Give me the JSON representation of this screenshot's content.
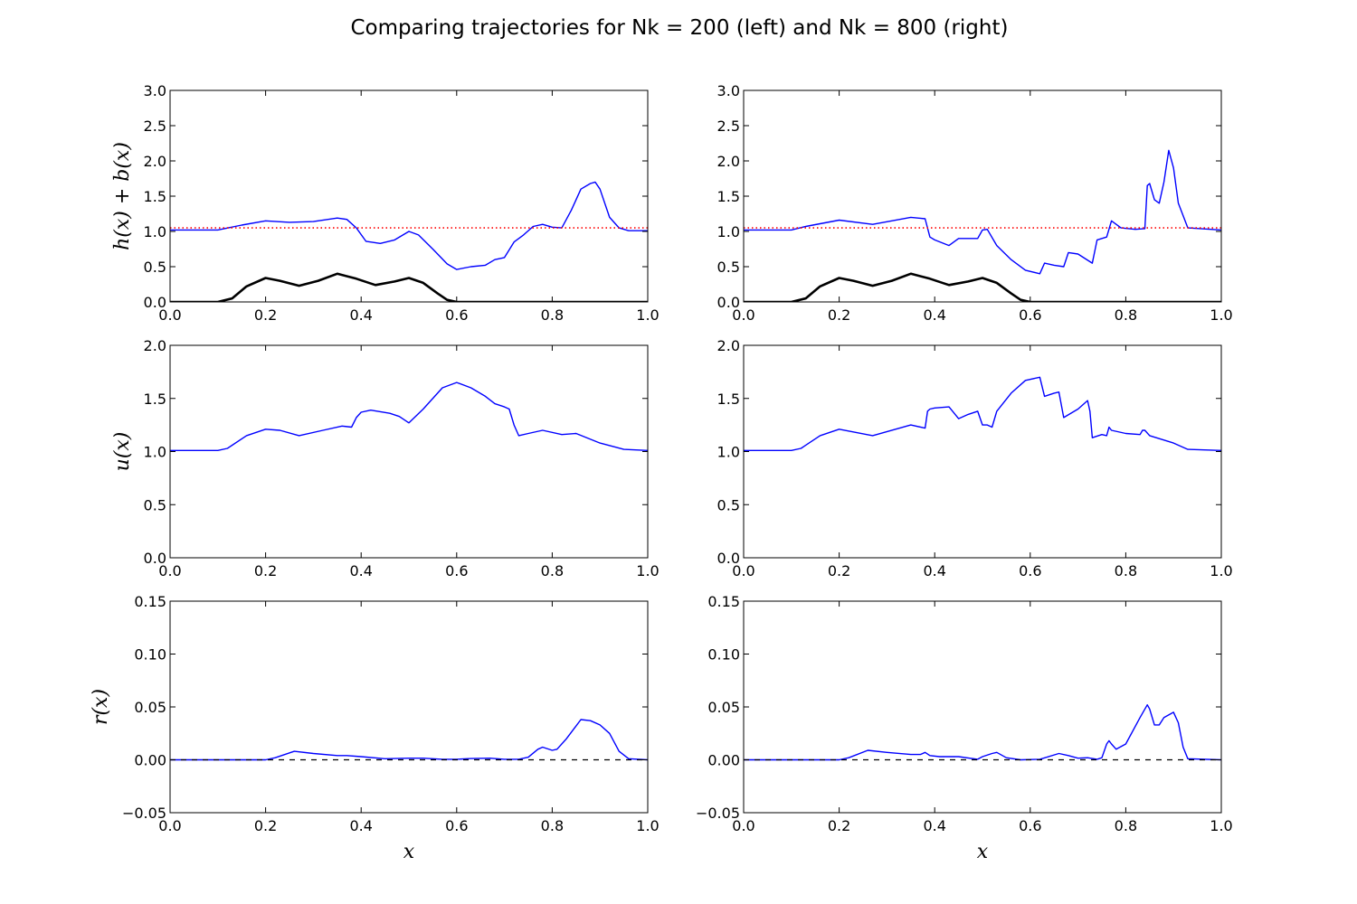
{
  "figure": {
    "title": "Comparing trajectories for Nk = 200 (left) and Nk = 800 (right)"
  },
  "chart_data": [
    {
      "type": "line",
      "column": "left",
      "row": "top",
      "ylabel": "h(x) + b(x)",
      "xlabel": "",
      "xlim": [
        0,
        1
      ],
      "ylim": [
        0,
        3
      ],
      "xticks": [
        "0.0",
        "0.2",
        "0.4",
        "0.6",
        "0.8",
        "1.0"
      ],
      "yticks": [
        "0.0",
        "0.5",
        "1.0",
        "1.5",
        "2.0",
        "2.5",
        "3.0"
      ],
      "grid": false,
      "series": [
        {
          "role": "surface",
          "color": "#0000ff",
          "style": "solid",
          "x": [
            0,
            0.1,
            0.15,
            0.2,
            0.25,
            0.3,
            0.35,
            0.37,
            0.39,
            0.41,
            0.44,
            0.47,
            0.5,
            0.52,
            0.55,
            0.58,
            0.6,
            0.63,
            0.66,
            0.68,
            0.7,
            0.72,
            0.74,
            0.76,
            0.78,
            0.8,
            0.82,
            0.84,
            0.86,
            0.88,
            0.89,
            0.9,
            0.92,
            0.94,
            0.96,
            1.0
          ],
          "y": [
            1.02,
            1.02,
            1.09,
            1.15,
            1.13,
            1.14,
            1.19,
            1.17,
            1.05,
            0.86,
            0.83,
            0.88,
            1.0,
            0.95,
            0.75,
            0.54,
            0.46,
            0.5,
            0.52,
            0.6,
            0.63,
            0.85,
            0.95,
            1.07,
            1.1,
            1.06,
            1.05,
            1.3,
            1.6,
            1.68,
            1.7,
            1.6,
            1.2,
            1.05,
            1.01,
            1.01
          ]
        },
        {
          "role": "reference",
          "color": "#ff0000",
          "style": "dotted",
          "x": [
            0,
            1
          ],
          "y": [
            1.05,
            1.05
          ]
        },
        {
          "role": "bed",
          "color": "#000000",
          "style": "solid-thick",
          "x": [
            0,
            0.1,
            0.13,
            0.16,
            0.2,
            0.23,
            0.27,
            0.31,
            0.35,
            0.39,
            0.43,
            0.47,
            0.5,
            0.53,
            0.56,
            0.58,
            0.6,
            1.0
          ],
          "y": [
            0,
            0,
            0.05,
            0.22,
            0.34,
            0.3,
            0.23,
            0.3,
            0.4,
            0.33,
            0.24,
            0.29,
            0.34,
            0.27,
            0.12,
            0.03,
            0,
            0
          ]
        }
      ]
    },
    {
      "type": "line",
      "column": "right",
      "row": "top",
      "ylabel": "",
      "xlabel": "",
      "xlim": [
        0,
        1
      ],
      "ylim": [
        0,
        3
      ],
      "xticks": [
        "0.0",
        "0.2",
        "0.4",
        "0.6",
        "0.8",
        "1.0"
      ],
      "yticks": [
        "0.0",
        "0.5",
        "1.0",
        "1.5",
        "2.0",
        "2.5",
        "3.0"
      ],
      "grid": false,
      "series": [
        {
          "role": "surface",
          "color": "#0000ff",
          "style": "solid",
          "x": [
            0,
            0.1,
            0.13,
            0.2,
            0.27,
            0.35,
            0.38,
            0.39,
            0.4,
            0.43,
            0.45,
            0.49,
            0.5,
            0.51,
            0.53,
            0.56,
            0.59,
            0.62,
            0.63,
            0.65,
            0.67,
            0.68,
            0.7,
            0.73,
            0.74,
            0.76,
            0.77,
            0.79,
            0.82,
            0.84,
            0.845,
            0.85,
            0.86,
            0.87,
            0.88,
            0.89,
            0.9,
            0.91,
            0.93,
            1.0
          ],
          "y": [
            1.02,
            1.02,
            1.07,
            1.16,
            1.1,
            1.2,
            1.18,
            0.92,
            0.88,
            0.8,
            0.9,
            0.9,
            1.02,
            1.03,
            0.8,
            0.6,
            0.45,
            0.4,
            0.55,
            0.52,
            0.5,
            0.7,
            0.68,
            0.55,
            0.88,
            0.92,
            1.15,
            1.05,
            1.03,
            1.04,
            1.65,
            1.68,
            1.45,
            1.4,
            1.7,
            2.15,
            1.9,
            1.4,
            1.05,
            1.02
          ]
        },
        {
          "role": "reference",
          "color": "#ff0000",
          "style": "dotted",
          "x": [
            0,
            1
          ],
          "y": [
            1.05,
            1.05
          ]
        },
        {
          "role": "bed",
          "color": "#000000",
          "style": "solid-thick",
          "x": [
            0,
            0.1,
            0.13,
            0.16,
            0.2,
            0.23,
            0.27,
            0.31,
            0.35,
            0.39,
            0.43,
            0.47,
            0.5,
            0.53,
            0.56,
            0.58,
            0.6,
            1.0
          ],
          "y": [
            0,
            0,
            0.05,
            0.22,
            0.34,
            0.3,
            0.23,
            0.3,
            0.4,
            0.33,
            0.24,
            0.29,
            0.34,
            0.27,
            0.12,
            0.03,
            0,
            0
          ]
        }
      ]
    },
    {
      "type": "line",
      "column": "left",
      "row": "middle",
      "ylabel": "u(x)",
      "xlabel": "",
      "xlim": [
        0,
        1
      ],
      "ylim": [
        0,
        2
      ],
      "xticks": [
        "0.0",
        "0.2",
        "0.4",
        "0.6",
        "0.8",
        "1.0"
      ],
      "yticks": [
        "0.0",
        "0.5",
        "1.0",
        "1.5",
        "2.0"
      ],
      "grid": false,
      "series": [
        {
          "role": "velocity",
          "color": "#0000ff",
          "style": "solid",
          "x": [
            0,
            0.1,
            0.12,
            0.16,
            0.2,
            0.23,
            0.27,
            0.32,
            0.36,
            0.38,
            0.39,
            0.4,
            0.42,
            0.46,
            0.48,
            0.5,
            0.53,
            0.57,
            0.6,
            0.63,
            0.66,
            0.68,
            0.7,
            0.71,
            0.72,
            0.73,
            0.75,
            0.78,
            0.82,
            0.85,
            0.9,
            0.95,
            1.0
          ],
          "y": [
            1.01,
            1.01,
            1.03,
            1.15,
            1.21,
            1.2,
            1.15,
            1.2,
            1.24,
            1.23,
            1.32,
            1.37,
            1.39,
            1.36,
            1.33,
            1.27,
            1.4,
            1.6,
            1.65,
            1.6,
            1.52,
            1.45,
            1.42,
            1.4,
            1.25,
            1.15,
            1.17,
            1.2,
            1.16,
            1.17,
            1.08,
            1.02,
            1.01
          ]
        }
      ]
    },
    {
      "type": "line",
      "column": "right",
      "row": "middle",
      "ylabel": "",
      "xlabel": "",
      "xlim": [
        0,
        1
      ],
      "ylim": [
        0,
        2
      ],
      "xticks": [
        "0.0",
        "0.2",
        "0.4",
        "0.6",
        "0.8",
        "1.0"
      ],
      "yticks": [
        "0.0",
        "0.5",
        "1.0",
        "1.5",
        "2.0"
      ],
      "grid": false,
      "series": [
        {
          "role": "velocity",
          "color": "#0000ff",
          "style": "solid",
          "x": [
            0,
            0.1,
            0.12,
            0.16,
            0.2,
            0.27,
            0.35,
            0.38,
            0.385,
            0.39,
            0.4,
            0.43,
            0.45,
            0.47,
            0.49,
            0.5,
            0.51,
            0.52,
            0.53,
            0.56,
            0.59,
            0.62,
            0.63,
            0.65,
            0.66,
            0.67,
            0.7,
            0.72,
            0.725,
            0.73,
            0.75,
            0.76,
            0.765,
            0.77,
            0.8,
            0.83,
            0.835,
            0.84,
            0.85,
            0.9,
            0.93,
            1.0
          ],
          "y": [
            1.01,
            1.01,
            1.03,
            1.15,
            1.21,
            1.15,
            1.25,
            1.22,
            1.38,
            1.4,
            1.41,
            1.42,
            1.31,
            1.35,
            1.38,
            1.25,
            1.25,
            1.23,
            1.38,
            1.55,
            1.67,
            1.7,
            1.52,
            1.55,
            1.56,
            1.32,
            1.4,
            1.48,
            1.38,
            1.13,
            1.16,
            1.15,
            1.23,
            1.2,
            1.17,
            1.16,
            1.2,
            1.2,
            1.15,
            1.08,
            1.02,
            1.01
          ]
        }
      ]
    },
    {
      "type": "line",
      "column": "left",
      "row": "bottom",
      "ylabel": "r(x)",
      "xlabel": "x",
      "xlim": [
        0,
        1
      ],
      "ylim": [
        -0.05,
        0.15
      ],
      "xticks": [
        "0.0",
        "0.2",
        "0.4",
        "0.6",
        "0.8",
        "1.0"
      ],
      "yticks": [
        "−0.05",
        "0.00",
        "0.05",
        "0.10",
        "0.15"
      ],
      "grid": false,
      "series": [
        {
          "role": "r",
          "color": "#0000ff",
          "style": "solid",
          "x": [
            0,
            0.2,
            0.22,
            0.26,
            0.3,
            0.35,
            0.37,
            0.4,
            0.45,
            0.5,
            0.53,
            0.57,
            0.6,
            0.63,
            0.67,
            0.7,
            0.73,
            0.75,
            0.77,
            0.78,
            0.8,
            0.81,
            0.83,
            0.86,
            0.88,
            0.9,
            0.92,
            0.94,
            0.96,
            1.0
          ],
          "y": [
            0,
            0,
            0.002,
            0.008,
            0.006,
            0.004,
            0.004,
            0.003,
            0.001,
            0.0015,
            0.0015,
            0.0005,
            0.0005,
            0.0012,
            0.0015,
            0.0005,
            0.0005,
            0.0025,
            0.01,
            0.012,
            0.009,
            0.01,
            0.02,
            0.038,
            0.037,
            0.033,
            0.025,
            0.008,
            0.001,
            0
          ]
        },
        {
          "role": "zero-line",
          "color": "#000000",
          "style": "dashed",
          "x": [
            0,
            1
          ],
          "y": [
            0,
            0
          ]
        }
      ]
    },
    {
      "type": "line",
      "column": "right",
      "row": "bottom",
      "ylabel": "",
      "xlabel": "x",
      "xlim": [
        0,
        1
      ],
      "ylim": [
        -0.05,
        0.15
      ],
      "xticks": [
        "0.0",
        "0.2",
        "0.4",
        "0.6",
        "0.8",
        "1.0"
      ],
      "yticks": [
        "−0.05",
        "0.00",
        "0.05",
        "0.10",
        "0.15"
      ],
      "grid": false,
      "series": [
        {
          "role": "r",
          "color": "#0000ff",
          "style": "solid",
          "x": [
            0,
            0.2,
            0.22,
            0.26,
            0.3,
            0.35,
            0.37,
            0.38,
            0.39,
            0.41,
            0.45,
            0.49,
            0.5,
            0.52,
            0.53,
            0.55,
            0.58,
            0.62,
            0.66,
            0.68,
            0.7,
            0.72,
            0.74,
            0.75,
            0.76,
            0.765,
            0.77,
            0.78,
            0.8,
            0.83,
            0.845,
            0.85,
            0.86,
            0.87,
            0.88,
            0.9,
            0.91,
            0.92,
            0.93,
            1.0
          ],
          "y": [
            0,
            0,
            0.002,
            0.009,
            0.007,
            0.005,
            0.005,
            0.007,
            0.004,
            0.003,
            0.003,
            0.0005,
            0.003,
            0.006,
            0.007,
            0.002,
            0,
            0.0005,
            0.006,
            0.004,
            0.0015,
            0.002,
            0.0005,
            0.002,
            0.015,
            0.018,
            0.015,
            0.01,
            0.015,
            0.04,
            0.052,
            0.048,
            0.033,
            0.033,
            0.04,
            0.045,
            0.035,
            0.012,
            0.001,
            0
          ]
        },
        {
          "role": "zero-line",
          "color": "#000000",
          "style": "dashed",
          "x": [
            0,
            1
          ],
          "y": [
            0,
            0
          ]
        }
      ]
    }
  ]
}
